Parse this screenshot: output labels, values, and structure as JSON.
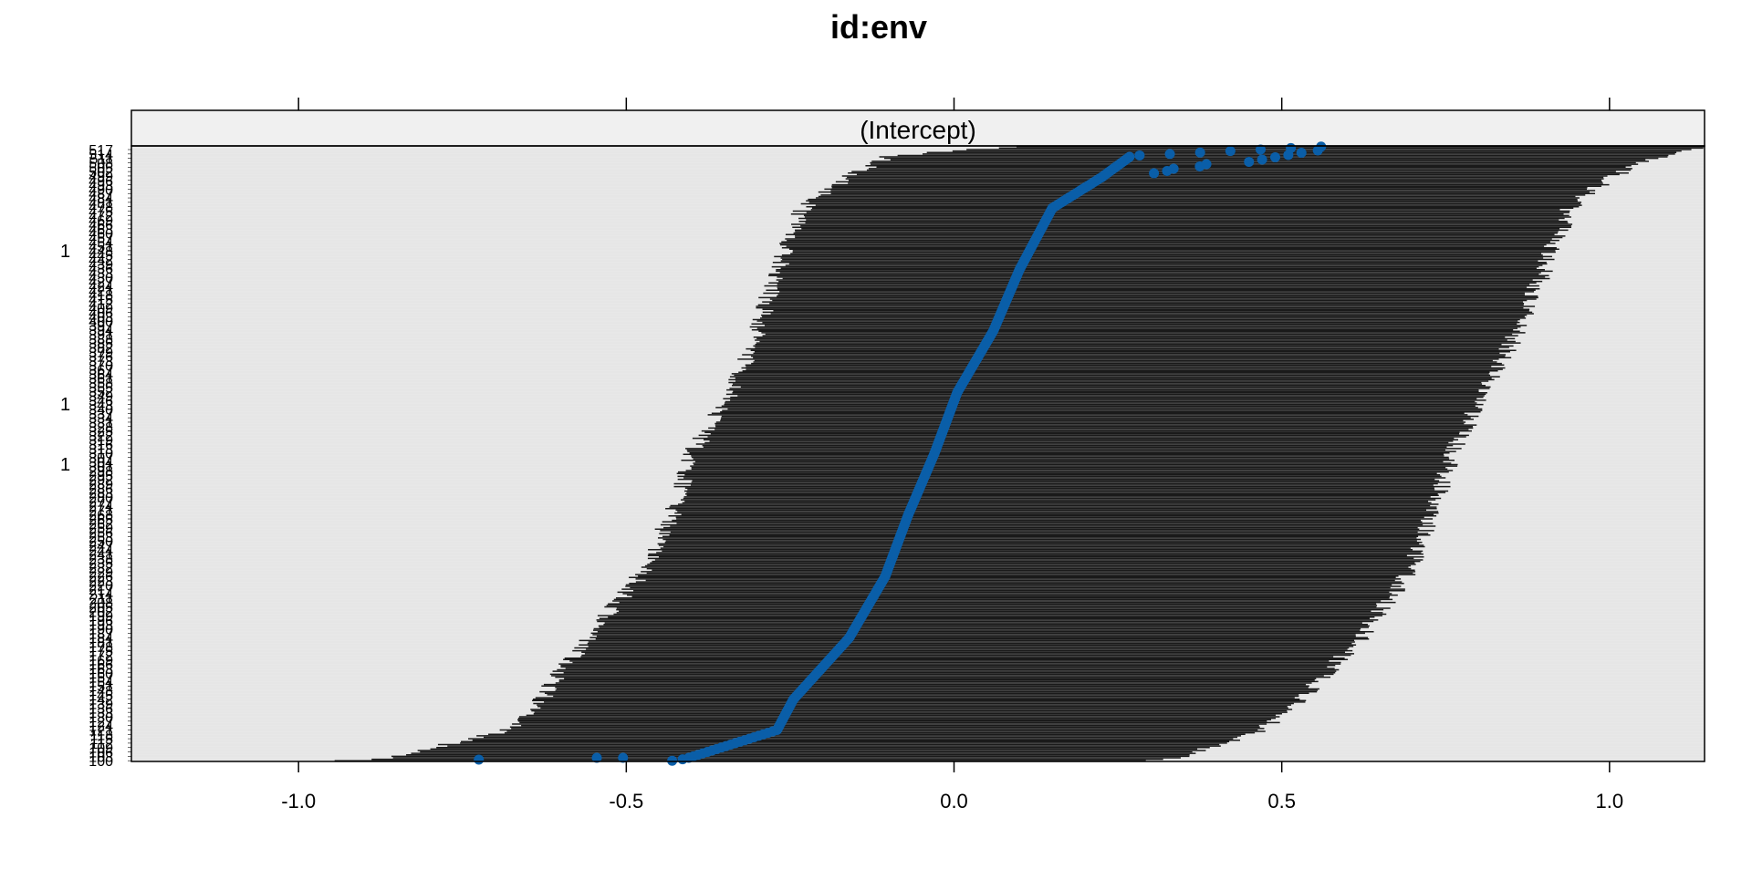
{
  "chart_data": {
    "type": "scatter",
    "title": "id:env",
    "strip_label": "(Intercept)",
    "xlabel": "",
    "ylabel": "",
    "xlim": [
      -1.255,
      1.145
    ],
    "xticks": [
      -1.0,
      -0.5,
      0.0,
      0.5,
      1.0
    ],
    "xtick_labels": [
      "-1.0",
      "-0.5",
      "0.0",
      "0.5",
      "1.0"
    ],
    "n_levels": 420,
    "grid": true,
    "legend": "none",
    "outliers_low": [
      -0.725,
      -0.545,
      -0.505
    ],
    "outliers_high": [
      0.305,
      0.325,
      0.335,
      0.375,
      0.385,
      0.45,
      0.47,
      0.49,
      0.51,
      0.53,
      0.555
    ],
    "y_tick_labels_partial": [
      "1",
      "1",
      "1"
    ],
    "series": [
      {
        "values_description_quantiles": [
          0,
          0.003,
          0.05,
          0.1,
          0.2,
          0.3,
          0.4,
          0.5,
          0.6,
          0.7,
          0.8,
          0.9,
          0.95,
          0.985,
          1
        ],
        "estimate": [
          -0.43,
          -0.41,
          -0.27,
          -0.245,
          -0.16,
          -0.105,
          -0.07,
          -0.03,
          0.005,
          0.06,
          0.1,
          0.15,
          0.225,
          0.27,
          0.56
        ],
        "lower": [
          -0.93,
          -0.87,
          -0.68,
          -0.63,
          -0.56,
          -0.48,
          -0.43,
          -0.4,
          -0.34,
          -0.3,
          -0.27,
          -0.23,
          -0.16,
          -0.1,
          0.09
        ],
        "upper": [
          0.28,
          0.34,
          0.47,
          0.53,
          0.62,
          0.69,
          0.73,
          0.76,
          0.81,
          0.86,
          0.9,
          0.94,
          1.0,
          1.08,
          1.15
        ]
      }
    ]
  },
  "colors": {
    "panel_bg": "#e6e6e6",
    "strip_bg": "#f0f0f0",
    "interval": "#1a1a1a",
    "point": "#0a5ea8",
    "frame": "#000000"
  }
}
